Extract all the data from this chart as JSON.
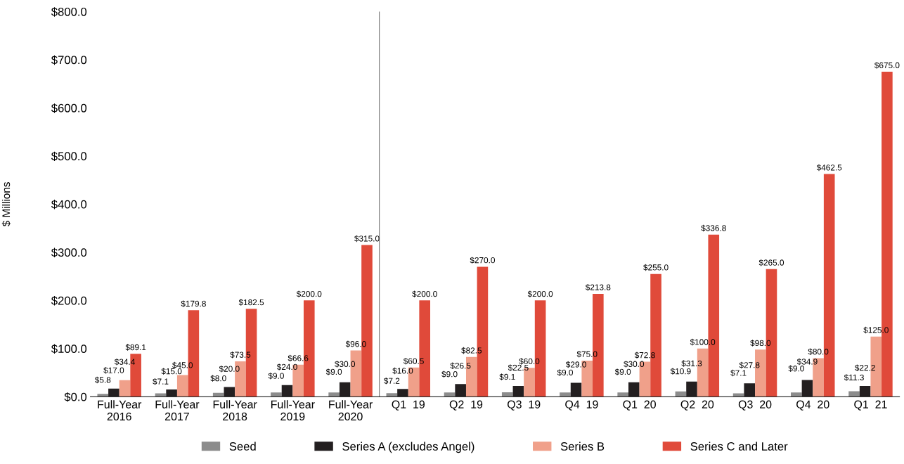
{
  "chart_data": {
    "type": "bar",
    "ylabel": "$ Millions",
    "categories": [
      "Full-Year\n2016",
      "Full-Year\n2017",
      "Full-Year\n2018",
      "Full-Year\n2019",
      "Full-Year\n2020",
      "Q1  19",
      "Q2  19",
      "Q3  19",
      "Q4  19",
      "Q1  20",
      "Q2  20",
      "Q3  20",
      "Q4  20",
      "Q1  21"
    ],
    "series": [
      {
        "name": "Seed",
        "color": "#8c8c8c",
        "values": [
          5.8,
          7.1,
          8.0,
          9.0,
          9.0,
          7.2,
          9.0,
          9.1,
          9.0,
          9.0,
          10.9,
          7.1,
          9.0,
          11.3
        ],
        "value_labels": [
          "$5.8",
          "$7.1",
          "$8.0",
          "$9.0",
          "$9.0",
          "$7.2",
          "$9.0",
          "$9.1",
          "$9.0",
          "$9.0",
          "$10.9",
          "$7.1",
          "$9.0",
          "$11.3"
        ]
      },
      {
        "name": "Series A (excludes Angel)",
        "color": "#231f20",
        "values": [
          17.0,
          15.0,
          20.0,
          24.0,
          30.0,
          16.0,
          26.5,
          22.5,
          29.0,
          30.0,
          31.3,
          27.8,
          34.9,
          22.2
        ],
        "value_labels": [
          "$17.0",
          "$15.0",
          "$20.0",
          "$24.0",
          "$30.0",
          "$16.0",
          "$26.5",
          "$22.5",
          "$29.0",
          "$30.0",
          "$31.3",
          "$27.8",
          "$34.9",
          "$22.2"
        ]
      },
      {
        "name": "Series B",
        "color": "#f0a08a",
        "values": [
          34.4,
          45.0,
          73.5,
          66.6,
          96.0,
          60.5,
          82.5,
          60.0,
          75.0,
          72.8,
          100.0,
          98.0,
          80.0,
          125.0
        ],
        "value_labels": [
          "$34.4",
          "$45.0",
          "$73.5",
          "$66.6",
          "$96.0",
          "$60.5",
          "$82.5",
          "$60.0",
          "$75.0",
          "$72.8",
          "$100.0",
          "$98.0",
          "$80.0",
          "$125.0"
        ]
      },
      {
        "name": "Series C and Later",
        "color": "#e04a3a",
        "values": [
          89.1,
          179.8,
          182.5,
          200.0,
          315.0,
          200.0,
          270.0,
          200.0,
          213.8,
          255.0,
          336.8,
          265.0,
          462.5,
          675.0
        ],
        "value_labels": [
          "$89.1",
          "$179.8",
          "$182.5",
          "$200.0",
          "$315.0",
          "$200.0",
          "$270.0",
          "$200.0",
          "$213.8",
          "$255.0",
          "$336.8",
          "$265.0",
          "$462.5",
          "$675.0"
        ]
      }
    ],
    "ylim": [
      0,
      800
    ],
    "yticks": [
      {
        "value": 0,
        "label": "$0.0"
      },
      {
        "value": 100,
        "label": "$100.0"
      },
      {
        "value": 200,
        "label": "$200.0"
      },
      {
        "value": 300,
        "label": "$300.0"
      },
      {
        "value": 400,
        "label": "$400.0"
      },
      {
        "value": 500,
        "label": "$500.0"
      },
      {
        "value": 600,
        "label": "$600.0"
      },
      {
        "value": 700,
        "label": "$700.0"
      },
      {
        "value": 800,
        "label": "$800.0"
      }
    ],
    "grid": false,
    "legend": "bottom"
  }
}
